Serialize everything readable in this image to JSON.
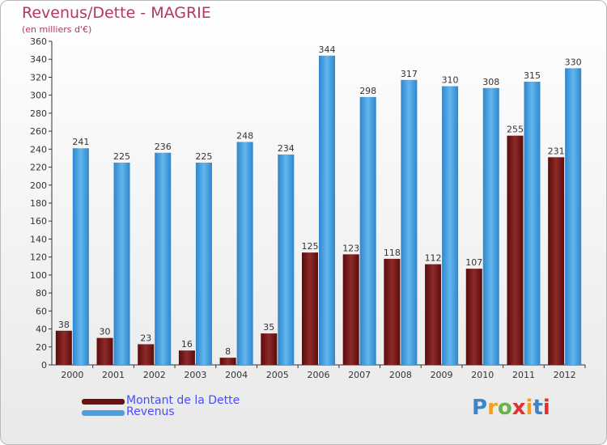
{
  "title": "Revenus/Dette - MAGRIE",
  "subtitle": "(en milliers d'€)",
  "logo": {
    "letters": [
      "P",
      "r",
      "o",
      "x",
      "i",
      "t",
      "i"
    ],
    "colors": [
      "#3a86c8",
      "#f0a020",
      "#6ab04c",
      "#e03030",
      "#f0a020",
      "#3a86c8",
      "#e03030"
    ]
  },
  "colors": {
    "dette": "#7a1a1a",
    "revenus": "#4aa0e0",
    "title": "#b8336a",
    "legend_text": "#4a4aff"
  },
  "chart_data": {
    "type": "bar",
    "title": "Revenus/Dette - MAGRIE",
    "subtitle": "(en milliers d'€)",
    "categories": [
      "2000",
      "2001",
      "2002",
      "2003",
      "2004",
      "2005",
      "2006",
      "2007",
      "2008",
      "2009",
      "2010",
      "2011",
      "2012"
    ],
    "series": [
      {
        "name": "Montant de la Dette",
        "values": [
          38,
          30,
          23,
          16,
          8,
          35,
          125,
          123,
          118,
          112,
          107,
          255,
          231
        ]
      },
      {
        "name": "Revenus",
        "values": [
          241,
          225,
          236,
          225,
          248,
          234,
          344,
          298,
          317,
          310,
          308,
          315,
          330
        ]
      }
    ],
    "ylim": [
      0,
      360
    ],
    "ytick_step": 20,
    "grid": false,
    "legend": "bottom-left"
  }
}
